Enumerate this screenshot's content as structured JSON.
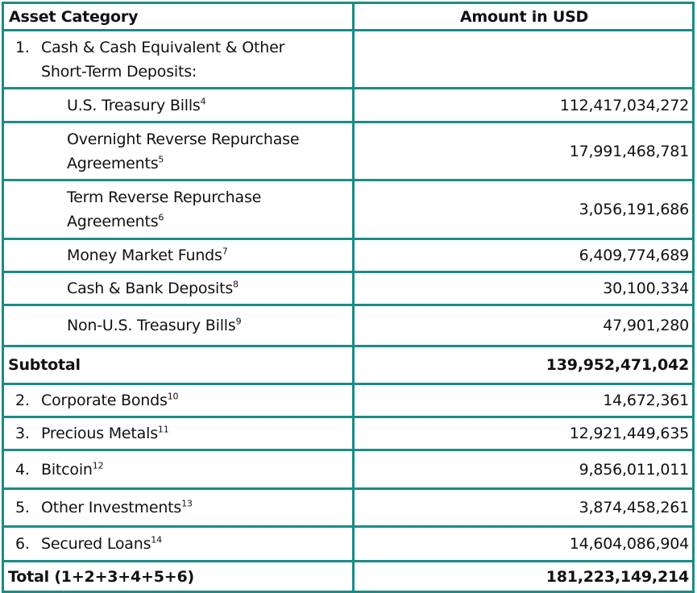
{
  "header": {
    "category": "Asset Category",
    "amount": "Amount in USD"
  },
  "section1": {
    "number": "1.",
    "label": "Cash & Cash Equivalent & Other Short-Term Deposits:"
  },
  "cash_items": [
    {
      "label": "U.S. Treasury Bills",
      "note": "4",
      "amount": "112,417,034,272"
    },
    {
      "label": "Overnight Reverse Repurchase Agreements",
      "note": "5",
      "amount": "17,991,468,781"
    },
    {
      "label": "Term Reverse Repurchase Agreements",
      "note": "6",
      "amount": "3,056,191,686"
    },
    {
      "label": "Money Market Funds",
      "note": "7",
      "amount": "6,409,774,689"
    },
    {
      "label": "Cash & Bank Deposits",
      "note": "8",
      "amount": "30,100,334"
    },
    {
      "label": "Non-U.S. Treasury Bills",
      "note": "9",
      "amount": "47,901,280"
    }
  ],
  "subtotal": {
    "label": "Subtotal",
    "amount": "139,952,471,042"
  },
  "other_items": [
    {
      "number": "2.",
      "label": "Corporate Bonds",
      "note": "10",
      "amount": "14,672,361"
    },
    {
      "number": "3.",
      "label": "Precious Metals",
      "note": "11",
      "amount": "12,921,449,635"
    },
    {
      "number": "4.",
      "label": "Bitcoin",
      "note": "12",
      "amount": "9,856,011,011"
    },
    {
      "number": "5.",
      "label": "Other Investments",
      "note": "13",
      "amount": "3,874,458,261"
    },
    {
      "number": "6.",
      "label": "Secured Loans",
      "note": "14",
      "amount": "14,604,086,904"
    }
  ],
  "total": {
    "label": "Total (1+2+3+4+5+6)",
    "amount": "181,223,149,214"
  },
  "colors": {
    "border": "#1b8c85"
  }
}
